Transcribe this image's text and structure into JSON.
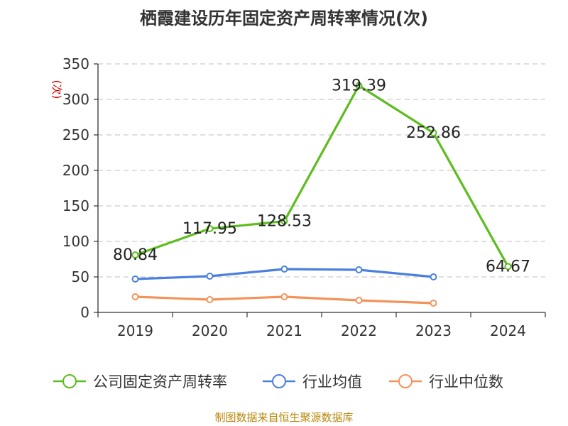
{
  "chart_data": {
    "type": "line",
    "title": "栖霞建设历年固定资产周转率情况(次)",
    "ylabel": "(次)",
    "xlabel": "",
    "ylim": [
      0,
      350
    ],
    "yticks": [
      0,
      50,
      100,
      150,
      200,
      250,
      300,
      350
    ],
    "categories": [
      "2019",
      "2020",
      "2021",
      "2022",
      "2023",
      "2024"
    ],
    "grid": true,
    "legend_position": "bottom",
    "series": [
      {
        "name": "公司固定资产周转率",
        "color": "#5cbd1f",
        "values": [
          80.84,
          117.95,
          128.53,
          319.39,
          252.86,
          64.67
        ],
        "labels": [
          "80.84",
          "117.95",
          "128.53",
          "319.39",
          "252.86",
          "64.67"
        ],
        "show_labels": true
      },
      {
        "name": "行业均值",
        "color": "#4a7fe0",
        "values": [
          47,
          51,
          61,
          60,
          50,
          null
        ],
        "show_labels": false
      },
      {
        "name": "行业中位数",
        "color": "#f3935a",
        "values": [
          22,
          18,
          22,
          17,
          13,
          null
        ],
        "show_labels": false
      }
    ],
    "source": "制图数据来自恒生聚源数据库"
  }
}
